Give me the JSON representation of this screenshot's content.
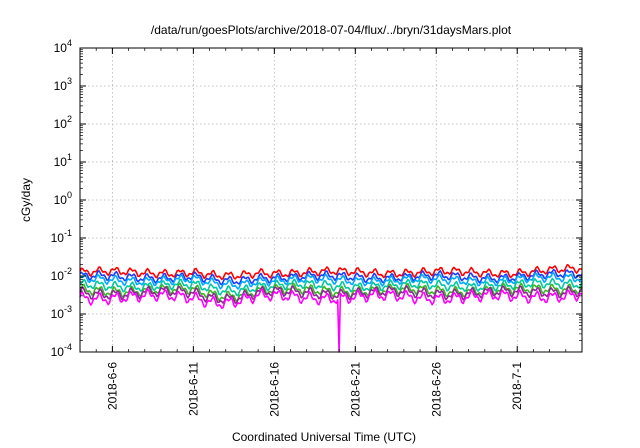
{
  "chart_data": {
    "type": "line",
    "title": "/data/run/goesPlots/archive/2018-07-04/flux/../bryn/31daysMars.plot",
    "xlabel": "Coordinated Universal Time (UTC)",
    "ylabel": "cGy/day",
    "yscale": "log",
    "ylim": [
      0.0001,
      10000
    ],
    "xlim": [
      "2018-06-04",
      "2018-07-05"
    ],
    "grid": true,
    "y_ticks": [
      {
        "base": "10",
        "exp": "-4"
      },
      {
        "base": "10",
        "exp": "-3"
      },
      {
        "base": "10",
        "exp": "-2"
      },
      {
        "base": "10",
        "exp": "-1"
      },
      {
        "base": "10",
        "exp": "0"
      },
      {
        "base": "10",
        "exp": "1"
      },
      {
        "base": "10",
        "exp": "2"
      },
      {
        "base": "10",
        "exp": "3"
      },
      {
        "base": "10",
        "exp": "4"
      }
    ],
    "x_ticks": [
      "2018-6-6",
      "2018-6-11",
      "2018-6-16",
      "2018-6-21",
      "2018-6-26",
      "2018-7-1"
    ],
    "series": [
      {
        "color": "#ff0000",
        "level": 0.0125,
        "amp": 0.14
      },
      {
        "color": "#1a3cff",
        "level": 0.0095,
        "amp": 0.15
      },
      {
        "color": "#00a8ff",
        "level": 0.0078,
        "amp": 0.15
      },
      {
        "color": "#00c8a0",
        "level": 0.0056,
        "amp": 0.16
      },
      {
        "color": "#3cb428",
        "level": 0.0042,
        "amp": 0.17
      },
      {
        "color": "#8c2890",
        "level": 0.0036,
        "amp": 0.18
      },
      {
        "color": "#ff00ff",
        "level": 0.0028,
        "amp": 0.2
      }
    ],
    "dip": {
      "date": "2018-06-20",
      "value": 0.0001
    }
  }
}
